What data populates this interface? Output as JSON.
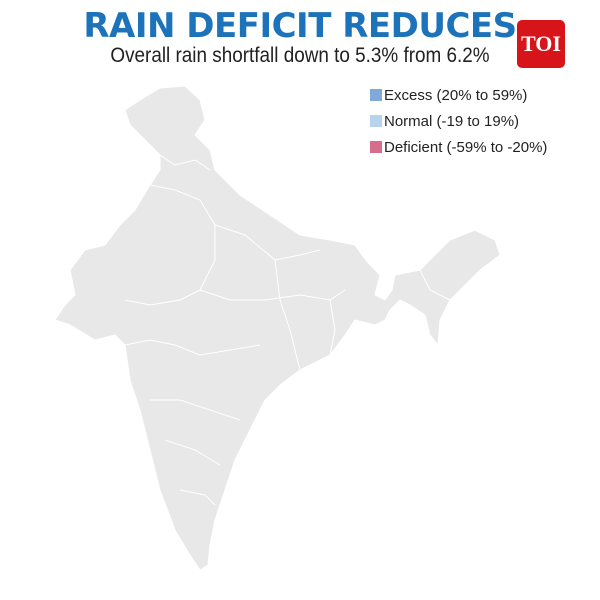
{
  "title": "RAIN DEFICIT REDUCES",
  "subtitle": "Overall rain shortfall down to 5.3% from 6.2%",
  "logo": "TOI",
  "legend": [
    {
      "label": "Excess (20% to 59%)",
      "color": "#7fa9d6"
    },
    {
      "label": "Normal (-19 to 19%)",
      "color": "#b9d3ee"
    },
    {
      "label": "Deficient (-59% to -20%)",
      "color": "#d86c8b"
    }
  ],
  "map": {
    "fill": "#e8e8e8",
    "border": "#ffffff"
  }
}
